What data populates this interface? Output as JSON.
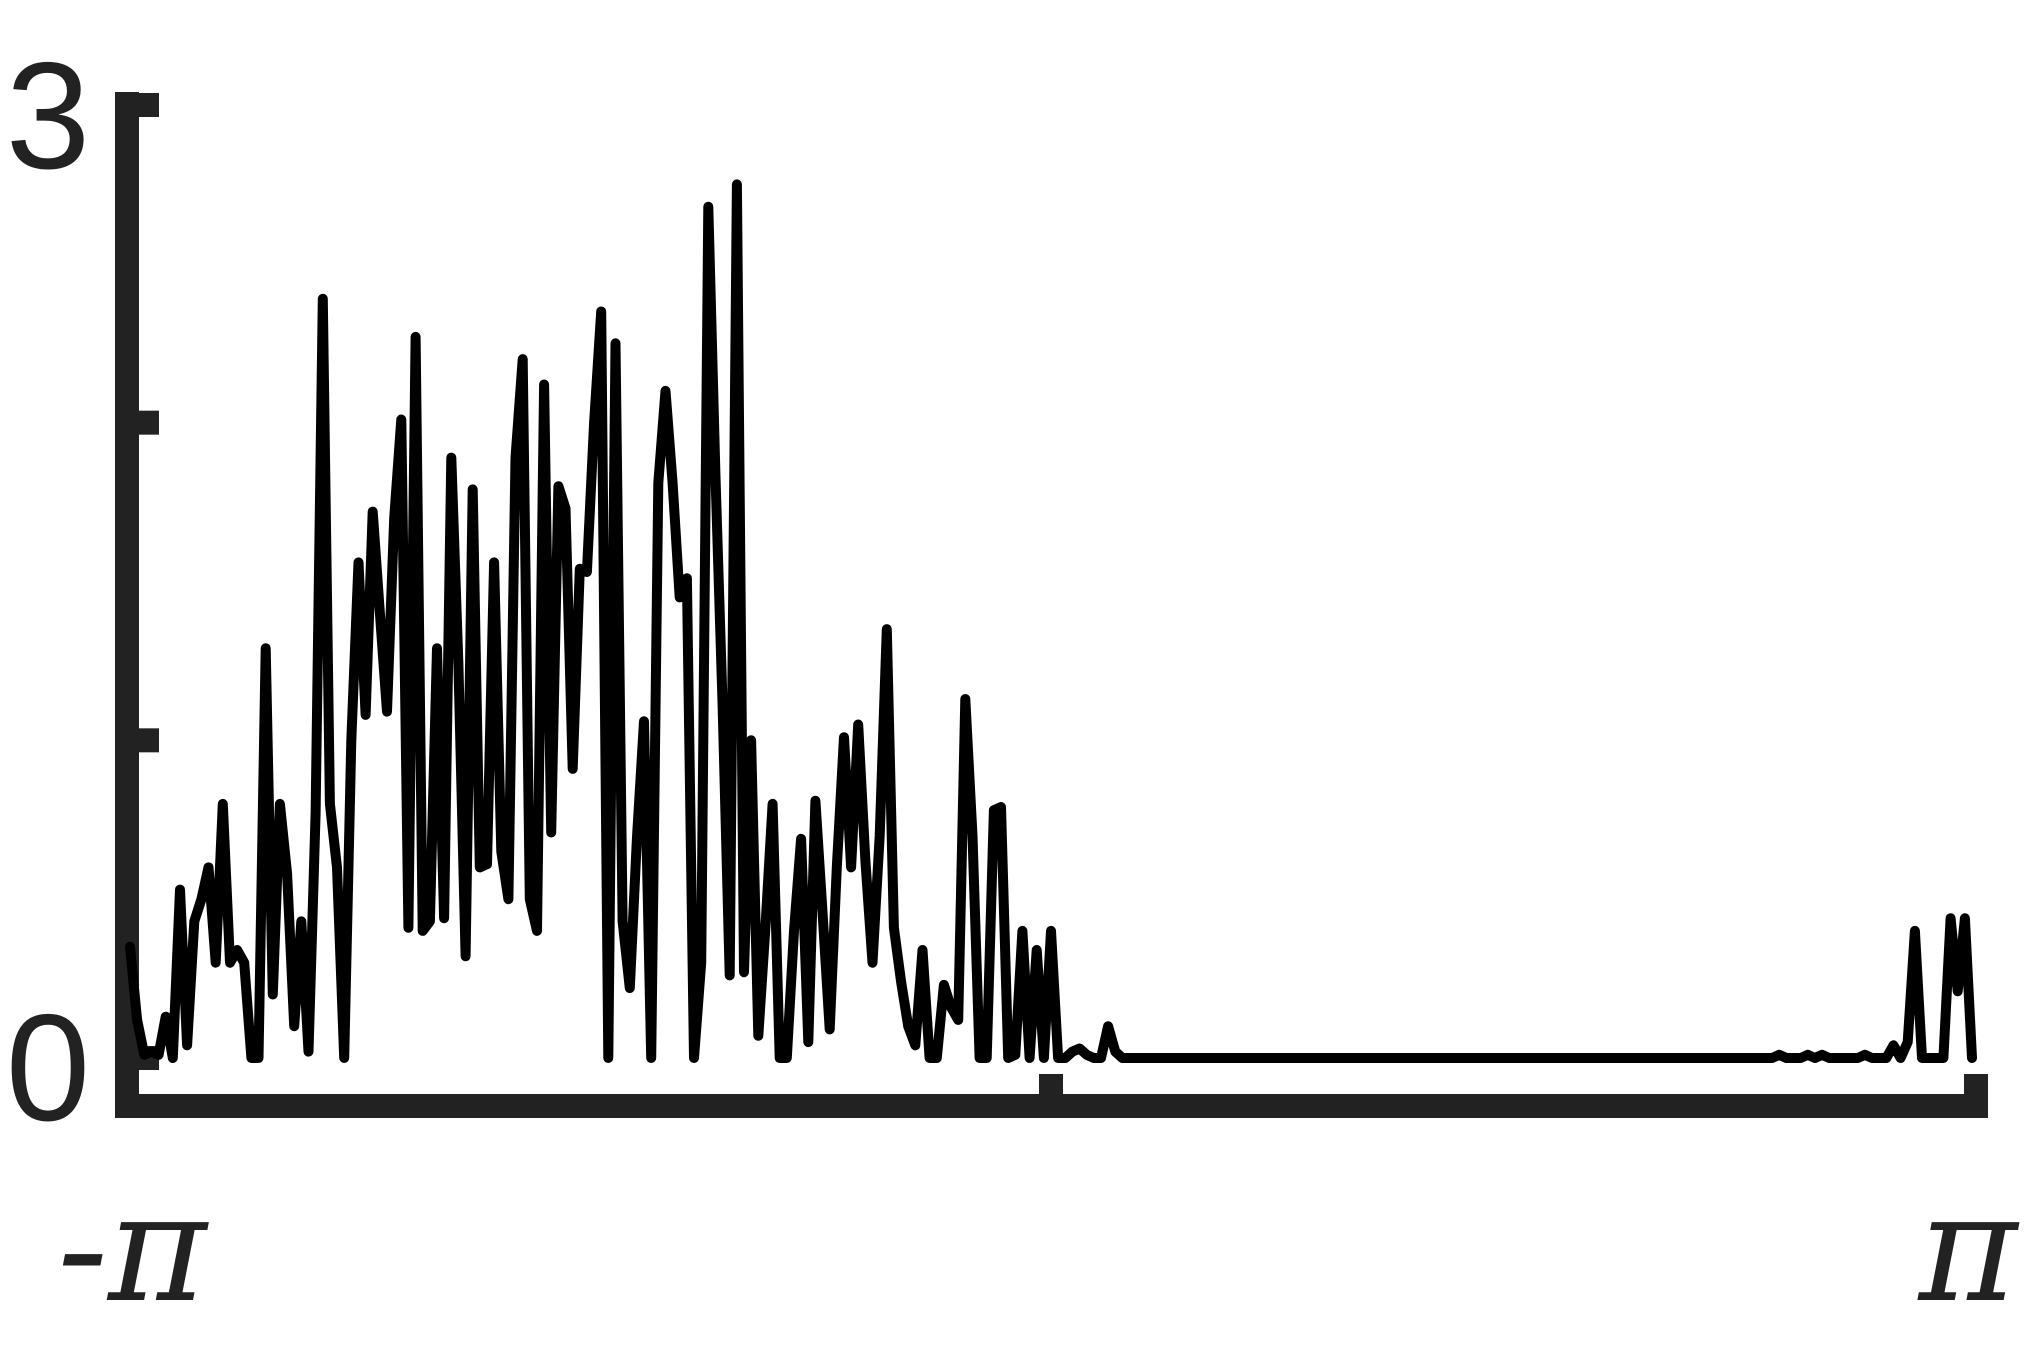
{
  "chart_data": {
    "type": "line",
    "title": "",
    "xlabel": "",
    "ylabel": "",
    "xlim": [
      -3.14159,
      3.14159
    ],
    "ylim": [
      0,
      3
    ],
    "x_ticks": [
      {
        "value": -3.14159,
        "label": "-π"
      },
      {
        "value": 0,
        "label": ""
      },
      {
        "value": 3.14159,
        "label": "π"
      }
    ],
    "y_ticks": [
      {
        "value": 0,
        "label": "0"
      },
      {
        "value": 1,
        "label": ""
      },
      {
        "value": 2,
        "label": ""
      },
      {
        "value": 3,
        "label": "3"
      }
    ],
    "grid": false,
    "colors": {
      "axis": "#222222",
      "line": "#000000"
    },
    "series": [
      {
        "x_range": [
          -3.14159,
          3.14159
        ],
        "values": [
          0.35,
          0.12,
          0.01,
          0.02,
          0.01,
          0.13,
          0.0,
          0.53,
          0.04,
          0.43,
          0.5,
          0.6,
          0.3,
          0.8,
          0.3,
          0.34,
          0.3,
          0.0,
          0.0,
          1.29,
          0.2,
          0.8,
          0.58,
          0.1,
          0.43,
          0.02,
          0.77,
          2.39,
          0.8,
          0.6,
          0.0,
          1.0,
          1.56,
          1.08,
          1.72,
          1.4,
          1.09,
          1.7,
          2.01,
          0.41,
          2.27,
          0.4,
          0.43,
          1.29,
          0.44,
          1.89,
          1.24,
          0.32,
          1.79,
          0.6,
          0.61,
          1.56,
          0.65,
          0.5,
          1.89,
          2.2,
          0.5,
          0.4,
          2.12,
          0.71,
          1.8,
          1.73,
          0.91,
          1.54,
          1.53,
          2.0,
          2.35,
          0.0,
          2.25,
          0.43,
          0.22,
          0.69,
          1.06,
          0.0,
          1.81,
          2.1,
          1.81,
          1.45,
          1.51,
          0.0,
          0.3,
          2.68,
          1.84,
          1.11,
          0.26,
          2.75,
          0.27,
          1.0,
          0.07,
          0.41,
          0.8,
          0.0,
          0.0,
          0.4,
          0.69,
          0.05,
          0.81,
          0.46,
          0.09,
          0.6,
          1.01,
          0.6,
          1.05,
          0.62,
          0.3,
          0.7,
          1.35,
          0.41,
          0.24,
          0.1,
          0.04,
          0.34,
          0.0,
          0.0,
          0.23,
          0.16,
          0.12,
          1.13,
          0.7,
          0.0,
          0.0,
          0.78,
          0.79,
          0.0,
          0.01,
          0.4,
          0.0,
          0.34,
          0.0,
          0.4,
          0.0,
          0.0,
          0.02,
          0.03,
          0.01,
          0.0,
          0.0,
          0.1,
          0.02,
          0.0,
          0.0,
          0.0,
          0.0,
          0.0,
          0.0,
          0.0,
          0.0,
          0.0,
          0.0,
          0.0,
          0.0,
          0.0,
          0.0,
          0.0,
          0.0,
          0.0,
          0.0,
          0.0,
          0.0,
          0.0,
          0.0,
          0.0,
          0.0,
          0.0,
          0.0,
          0.0,
          0.0,
          0.0,
          0.0,
          0.0,
          0.0,
          0.0,
          0.0,
          0.0,
          0.0,
          0.0,
          0.0,
          0.0,
          0.0,
          0.0,
          0.0,
          0.0,
          0.0,
          0.0,
          0.0,
          0.0,
          0.0,
          0.0,
          0.0,
          0.0,
          0.0,
          0.0,
          0.0,
          0.0,
          0.0,
          0.0,
          0.0,
          0.0,
          0.0,
          0.0,
          0.0,
          0.0,
          0.0,
          0.0,
          0.0,
          0.0,
          0.0,
          0.0,
          0.0,
          0.0,
          0.0,
          0.0,
          0.0,
          0.0,
          0.0,
          0.0,
          0.0,
          0.0,
          0.0,
          0.0,
          0.0,
          0.0,
          0.0,
          0.0,
          0.0,
          0.0,
          0.0,
          0.0,
          0.0,
          0.0,
          0.0,
          0.01,
          0.0,
          0.0,
          0.0,
          0.01,
          0.0,
          0.01,
          0.0,
          0.0,
          0.0,
          0.0,
          0.0,
          0.01,
          0.0,
          0.0,
          0.0,
          0.04,
          0.0,
          0.05,
          0.4,
          0.0,
          0.0,
          0.0,
          0.0,
          0.44,
          0.21,
          0.44,
          0.0
        ]
      }
    ]
  }
}
